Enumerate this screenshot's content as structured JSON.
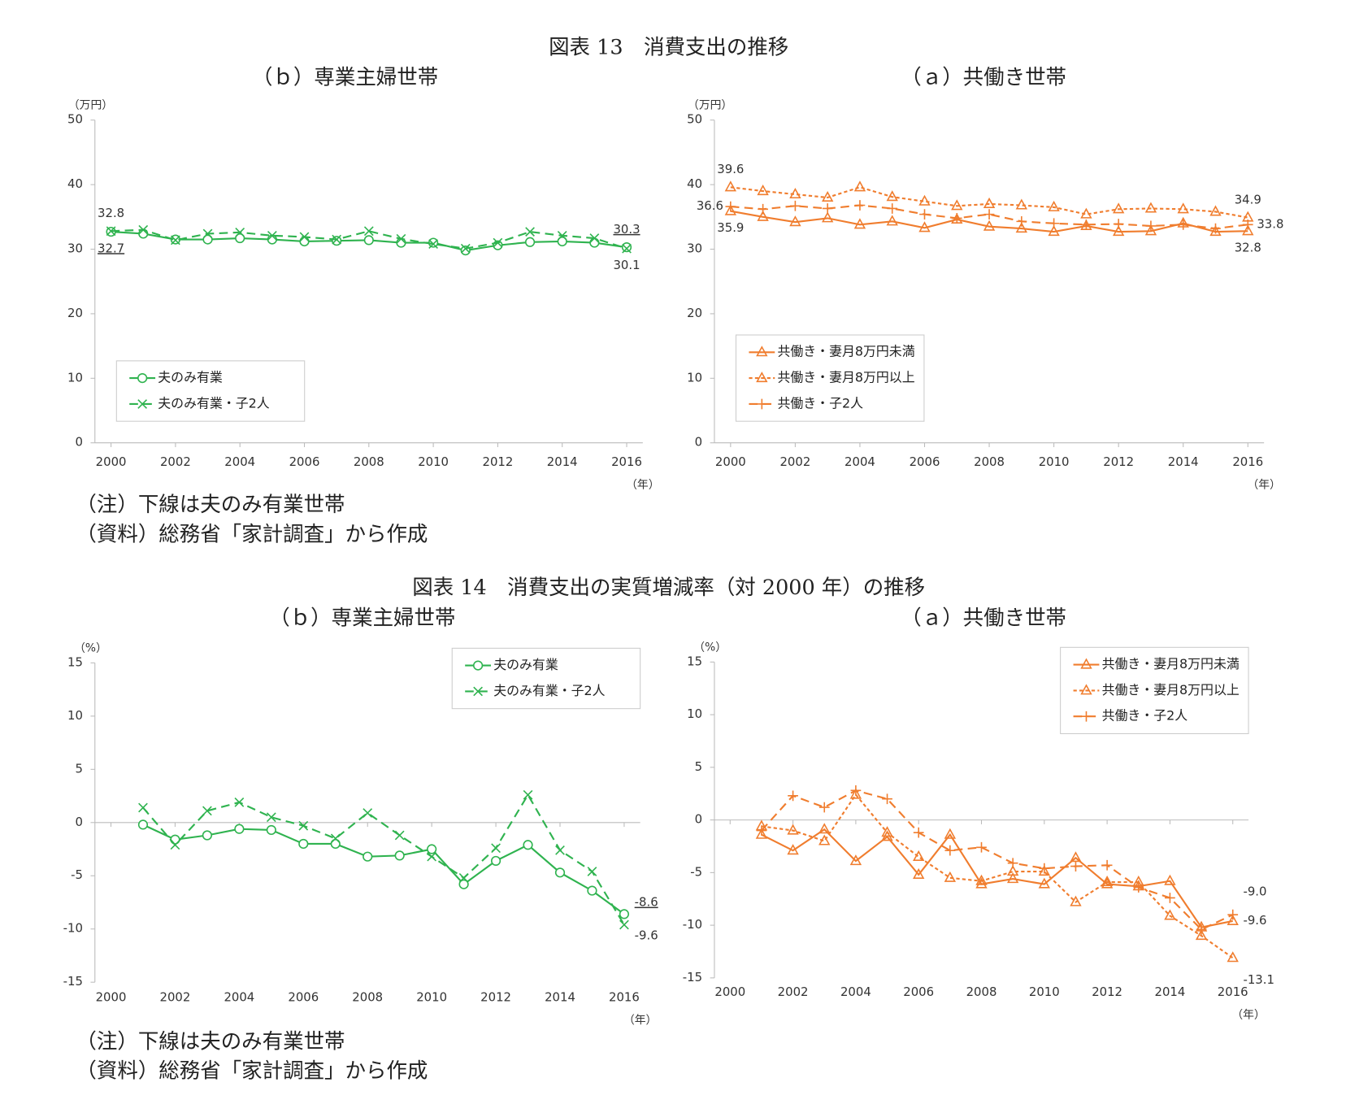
{
  "figures": [
    {
      "title": "図表 13　消費支出の推移",
      "note": "（注）下線は夫のみ有業世帯",
      "source": "（資料）総務省「家計調査」から作成"
    },
    {
      "title": "図表 14　消費支出の実質増減率（対 2000 年）の推移",
      "note": "（注）下線は夫のみ有業世帯",
      "source": "（資料）総務省「家計調査」から作成"
    }
  ],
  "chart_data": [
    {
      "type": "line",
      "title": "（ｂ）専業主婦世帯",
      "ylabel": "（万円）",
      "xlabel": "（年）",
      "x": [
        2000,
        2001,
        2002,
        2003,
        2004,
        2005,
        2006,
        2007,
        2008,
        2009,
        2010,
        2011,
        2012,
        2013,
        2014,
        2015,
        2016
      ],
      "xlim": [
        1999.5,
        2016.5
      ],
      "xticks": [
        2000,
        2002,
        2004,
        2006,
        2008,
        2010,
        2012,
        2014,
        2016
      ],
      "ylim": [
        0,
        50
      ],
      "yticks": [
        0,
        10,
        20,
        30,
        40,
        50
      ],
      "legend": "lower left",
      "end_labels": "both",
      "series": [
        {
          "name": "夫のみ有業",
          "color": "#2fb34f",
          "marker": "circle",
          "line_style": "solid",
          "underline_labels": true,
          "values": [
            32.7,
            32.4,
            31.5,
            31.5,
            31.7,
            31.5,
            31.2,
            31.3,
            31.4,
            31.0,
            31.0,
            29.8,
            30.6,
            31.1,
            31.2,
            31.0,
            30.3
          ]
        },
        {
          "name": "夫のみ有業・子2人",
          "color": "#2fb34f",
          "marker": "x",
          "line_style": "dashed",
          "values": [
            32.8,
            33.0,
            31.4,
            32.4,
            32.6,
            32.1,
            31.9,
            31.5,
            32.8,
            31.6,
            30.8,
            30.1,
            31.0,
            32.7,
            32.1,
            31.7,
            30.1
          ]
        }
      ]
    },
    {
      "type": "line",
      "title": "（ａ）共働き世帯",
      "ylabel": "（万円）",
      "xlabel": "（年）",
      "x": [
        2000,
        2001,
        2002,
        2003,
        2004,
        2005,
        2006,
        2007,
        2008,
        2009,
        2010,
        2011,
        2012,
        2013,
        2014,
        2015,
        2016
      ],
      "xlim": [
        1999.5,
        2016.5
      ],
      "xticks": [
        2000,
        2002,
        2004,
        2006,
        2008,
        2010,
        2012,
        2014,
        2016
      ],
      "ylim": [
        0,
        50
      ],
      "yticks": [
        0,
        10,
        20,
        30,
        40,
        50
      ],
      "legend": "lower left",
      "end_labels": "both",
      "series": [
        {
          "name": "共働き・妻月8万円未満",
          "color": "#f07d2e",
          "marker": "triangle",
          "line_style": "solid",
          "values": [
            35.9,
            35.0,
            34.2,
            34.8,
            33.8,
            34.3,
            33.3,
            34.6,
            33.5,
            33.2,
            32.7,
            33.6,
            32.7,
            32.8,
            34.0,
            32.7,
            32.8
          ]
        },
        {
          "name": "共働き・妻月8万円以上",
          "color": "#f07d2e",
          "marker": "triangle",
          "line_style": "dotted",
          "values": [
            39.6,
            39.0,
            38.5,
            38.0,
            39.6,
            38.1,
            37.4,
            36.7,
            37.0,
            36.8,
            36.5,
            35.4,
            36.2,
            36.3,
            36.2,
            35.8,
            34.9
          ]
        },
        {
          "name": "共働き・子2人",
          "color": "#f07d2e",
          "marker": "plus",
          "line_style": "dashed",
          "values": [
            36.6,
            36.2,
            36.7,
            36.3,
            36.8,
            36.3,
            35.4,
            34.8,
            35.4,
            34.3,
            34.0,
            33.8,
            33.9,
            33.6,
            33.8,
            33.2,
            33.8
          ]
        }
      ]
    },
    {
      "type": "line",
      "title": "（ｂ）専業主婦世帯",
      "ylabel": "（%）",
      "xlabel": "（年）",
      "x": [
        2000,
        2001,
        2002,
        2003,
        2004,
        2005,
        2006,
        2007,
        2008,
        2009,
        2010,
        2011,
        2012,
        2013,
        2014,
        2015,
        2016
      ],
      "xlim": [
        1999.5,
        2016.5
      ],
      "xticks": [
        2000,
        2002,
        2004,
        2006,
        2008,
        2010,
        2012,
        2014,
        2016
      ],
      "ylim": [
        -15,
        15
      ],
      "yticks": [
        -15,
        -10,
        -5,
        0,
        5,
        10,
        15
      ],
      "legend": "upper right",
      "end_labels": "last",
      "series": [
        {
          "name": "夫のみ有業",
          "color": "#2fb34f",
          "marker": "circle",
          "line_style": "solid",
          "underline_labels": true,
          "values": [
            null,
            -0.2,
            -1.6,
            -1.2,
            -0.6,
            -0.7,
            -2.0,
            -2.0,
            -3.2,
            -3.1,
            -2.5,
            -5.8,
            -3.6,
            -2.1,
            -4.7,
            -6.4,
            -8.6
          ]
        },
        {
          "name": "夫のみ有業・子2人",
          "color": "#2fb34f",
          "marker": "x",
          "line_style": "dashed",
          "values": [
            null,
            1.4,
            -2.1,
            1.1,
            1.9,
            0.5,
            -0.3,
            -1.5,
            0.9,
            -1.2,
            -3.2,
            -5.2,
            -2.4,
            2.6,
            -2.6,
            -4.6,
            -9.6
          ]
        }
      ]
    },
    {
      "type": "line",
      "title": "（ａ）共働き世帯",
      "ylabel": "（%）",
      "xlabel": "（年）",
      "x": [
        2000,
        2001,
        2002,
        2003,
        2004,
        2005,
        2006,
        2007,
        2008,
        2009,
        2010,
        2011,
        2012,
        2013,
        2014,
        2015,
        2016
      ],
      "xlim": [
        1999.5,
        2016.5
      ],
      "xticks": [
        2000,
        2002,
        2004,
        2006,
        2008,
        2010,
        2012,
        2014,
        2016
      ],
      "ylim": [
        -15,
        15
      ],
      "yticks": [
        -15,
        -10,
        -5,
        0,
        5,
        10,
        15
      ],
      "legend": "upper right",
      "end_labels": "last",
      "series": [
        {
          "name": "共働き・妻月8万円未満",
          "color": "#f07d2e",
          "marker": "triangle",
          "line_style": "solid",
          "values": [
            null,
            -1.4,
            -2.9,
            -0.9,
            -3.9,
            -1.6,
            -5.2,
            -1.4,
            -6.1,
            -5.6,
            -6.1,
            -3.6,
            -6.1,
            -6.3,
            -5.8,
            -10.2,
            -9.6
          ]
        },
        {
          "name": "共働き・妻月8万円以上",
          "color": "#f07d2e",
          "marker": "triangle",
          "line_style": "dotted",
          "values": [
            null,
            -0.6,
            -1.0,
            -2.0,
            2.4,
            -1.2,
            -3.5,
            -5.5,
            -5.8,
            -4.9,
            -4.9,
            -7.8,
            -5.9,
            -5.9,
            -9.1,
            -11.0,
            -13.1
          ]
        },
        {
          "name": "共働き・子2人",
          "color": "#f07d2e",
          "marker": "plus",
          "line_style": "dashed",
          "values": [
            null,
            -1.0,
            2.3,
            1.2,
            2.8,
            2.0,
            -1.2,
            -2.9,
            -2.6,
            -4.1,
            -4.6,
            -4.4,
            -4.3,
            -6.4,
            -7.4,
            -10.4,
            -9.0
          ],
          "value_labels": [
            null,
            null,
            null,
            null,
            null,
            null,
            null,
            null,
            null,
            null,
            null,
            null,
            null,
            null,
            null,
            null,
            "-9.0"
          ]
        }
      ]
    }
  ]
}
